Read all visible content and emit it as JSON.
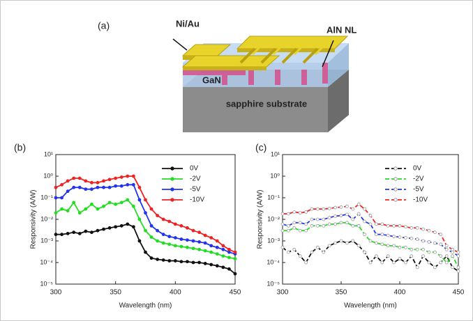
{
  "diagram": {
    "panel_label": "(a)",
    "labels": [
      "Ni/Au",
      "AlN NL",
      "GaN",
      "sapphire substrate"
    ]
  },
  "chart_data": [
    {
      "type": "line",
      "label": "(b)",
      "xlabel": "Wavelength (nm)",
      "ylabel": "Responsivity (A/W)",
      "log_y": true,
      "line_style": "solid",
      "marker": "filled",
      "legend": "upper right",
      "xlim": [
        300,
        450
      ],
      "xticks": [
        300,
        350,
        400,
        450
      ],
      "ylim": [
        1e-05,
        10
      ],
      "yticks": [
        {
          "value": 10,
          "label": "10¹"
        },
        {
          "value": 1,
          "label": "10⁰"
        },
        {
          "value": 0.1,
          "label": "10⁻¹"
        },
        {
          "value": 0.01,
          "label": "10⁻²"
        },
        {
          "value": 0.001,
          "label": "10⁻³"
        },
        {
          "value": 0.0001,
          "label": "10⁻⁴"
        },
        {
          "value": 1e-05,
          "label": "10⁻⁵"
        }
      ],
      "x": [
        300,
        305,
        310,
        315,
        320,
        325,
        330,
        335,
        340,
        345,
        350,
        355,
        360,
        365,
        370,
        375,
        380,
        385,
        390,
        395,
        400,
        405,
        410,
        415,
        420,
        425,
        430,
        435,
        440,
        445,
        450
      ],
      "series": [
        {
          "name": "0V",
          "color": "#111111",
          "values": [
            0.002,
            0.002,
            0.0022,
            0.0025,
            0.0022,
            0.0028,
            0.0025,
            0.003,
            0.0035,
            0.004,
            0.0045,
            0.005,
            0.006,
            0.0045,
            0.001,
            0.0003,
            0.00016,
            0.00014,
            0.00013,
            0.00012,
            0.00012,
            0.00011,
            0.00011,
            0.0001,
            0.0001,
            9e-05,
            8e-05,
            7e-05,
            6e-05,
            5e-05,
            3e-05
          ]
        },
        {
          "name": "-2V",
          "color": "#22dd22",
          "values": [
            0.02,
            0.03,
            0.025,
            0.06,
            0.02,
            0.03,
            0.05,
            0.03,
            0.04,
            0.06,
            0.05,
            0.06,
            0.08,
            0.04,
            0.01,
            0.003,
            0.0015,
            0.001,
            0.0008,
            0.0007,
            0.0006,
            0.00055,
            0.0005,
            0.00045,
            0.0004,
            0.00035,
            0.0003,
            0.00025,
            0.0002,
            0.00017,
            0.00015
          ]
        },
        {
          "name": "-5V",
          "color": "#2233ee",
          "values": [
            0.1,
            0.1,
            0.2,
            0.3,
            0.3,
            0.25,
            0.25,
            0.3,
            0.3,
            0.3,
            0.35,
            0.35,
            0.4,
            0.4,
            0.08,
            0.02,
            0.005,
            0.003,
            0.002,
            0.0016,
            0.0014,
            0.0012,
            0.0011,
            0.001,
            0.0009,
            0.0008,
            0.0006,
            0.0005,
            0.0004,
            0.0003,
            0.00025
          ]
        },
        {
          "name": "-10V",
          "color": "#ee2222",
          "values": [
            0.3,
            0.4,
            0.6,
            0.8,
            0.8,
            0.6,
            0.5,
            0.5,
            0.6,
            0.7,
            0.8,
            0.9,
            1,
            1,
            0.3,
            0.08,
            0.03,
            0.015,
            0.01,
            0.008,
            0.006,
            0.005,
            0.004,
            0.003,
            0.0025,
            0.0018,
            0.0014,
            0.001,
            0.0006,
            0.0004,
            0.0003
          ]
        }
      ]
    },
    {
      "type": "line",
      "label": "(c)",
      "xlabel": "Wavelength (nm)",
      "ylabel": "Responsivity (A/W)",
      "log_y": true,
      "line_style": "dashed",
      "marker": "open",
      "legend": "upper right",
      "xlim": [
        300,
        450
      ],
      "xticks": [
        300,
        350,
        400,
        450
      ],
      "ylim": [
        1e-05,
        10
      ],
      "yticks": [
        {
          "value": 10,
          "label": "10¹"
        },
        {
          "value": 1,
          "label": "10⁰"
        },
        {
          "value": 0.1,
          "label": "10⁻¹"
        },
        {
          "value": 0.01,
          "label": "10⁻²"
        },
        {
          "value": 0.001,
          "label": "10⁻³"
        },
        {
          "value": 0.0001,
          "label": "10⁻⁴"
        },
        {
          "value": 1e-05,
          "label": "10⁻⁵"
        }
      ],
      "x": [
        300,
        305,
        310,
        315,
        320,
        325,
        330,
        335,
        340,
        345,
        350,
        355,
        360,
        365,
        370,
        375,
        380,
        385,
        390,
        395,
        400,
        405,
        410,
        415,
        420,
        425,
        430,
        435,
        440,
        445,
        450
      ],
      "series": [
        {
          "name": "0V",
          "color": "#111111",
          "values": [
            0.0005,
            0.0003,
            0.0004,
            0.0002,
            0.0001,
            0.0003,
            0.0005,
            0.0003,
            0.0006,
            0.0008,
            0.001,
            0.0008,
            0.001,
            0.0006,
            0.0003,
            0.0001,
            0.0002,
            0.0001,
            0.0002,
            0.0001,
            0.00015,
            0.0001,
            0.0002,
            6e-05,
            0.0002,
            0.0001,
            6e-05,
            0.0001,
            0.0002,
            6e-05,
            4e-05
          ]
        },
        {
          "name": "-2V",
          "color": "#22dd22",
          "values": [
            0.003,
            0.003,
            0.004,
            0.003,
            0.003,
            0.005,
            0.005,
            0.005,
            0.006,
            0.006,
            0.007,
            0.007,
            0.005,
            0.005,
            0.002,
            0.001,
            0.0008,
            0.0007,
            0.0006,
            0.0006,
            0.0005,
            0.0005,
            0.0004,
            0.0004,
            0.0004,
            0.0003,
            0.0003,
            0.0002,
            0.0001,
            0.0002,
            6e-05
          ]
        },
        {
          "name": "-5V",
          "color": "#2233ee",
          "values": [
            0.006,
            0.005,
            0.007,
            0.007,
            0.006,
            0.01,
            0.01,
            0.01,
            0.012,
            0.014,
            0.015,
            0.017,
            0.01,
            0.018,
            0.008,
            0.006,
            0.002,
            0.002,
            0.0018,
            0.0016,
            0.0015,
            0.0014,
            0.0013,
            0.0012,
            0.001,
            0.0009,
            0.0008,
            0.0007,
            0.0004,
            0.0003,
            0.0002
          ]
        },
        {
          "name": "-10V",
          "color": "#ee2222",
          "values": [
            0.018,
            0.018,
            0.022,
            0.02,
            0.022,
            0.03,
            0.03,
            0.03,
            0.032,
            0.035,
            0.037,
            0.04,
            0.03,
            0.05,
            0.03,
            0.015,
            0.006,
            0.006,
            0.005,
            0.005,
            0.005,
            0.0045,
            0.004,
            0.004,
            0.0035,
            0.003,
            0.0025,
            0.002,
            0.0006,
            0.0004,
            0.0003
          ]
        }
      ]
    }
  ]
}
